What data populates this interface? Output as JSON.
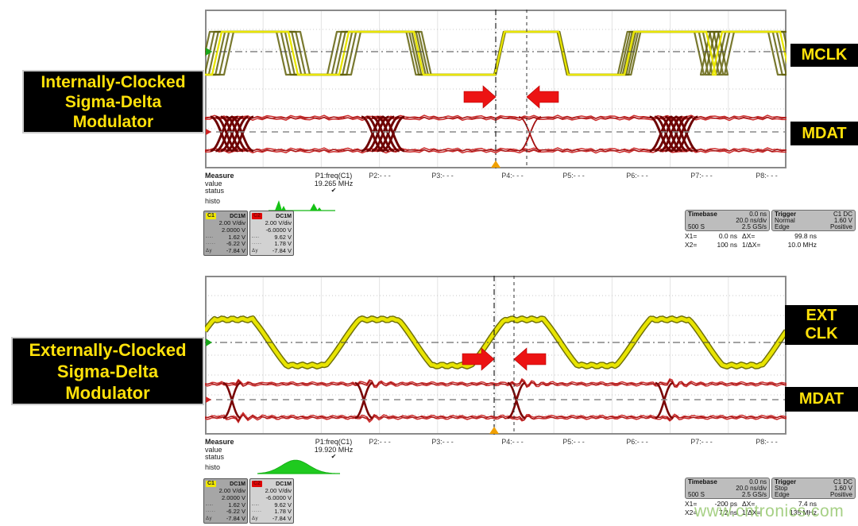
{
  "watermark": "www.cntronics.com",
  "scopes": [
    {
      "caption_lines": [
        "Internally-Clocked",
        "Sigma-Delta",
        "Modulator"
      ],
      "trace_labels": [
        {
          "lines": [
            "MCLK"
          ]
        },
        {
          "lines": [
            "MDAT"
          ]
        }
      ],
      "measure": {
        "title": "Measure",
        "row_labels": [
          "value",
          "status",
          "histo"
        ],
        "p1": {
          "label": "P1:freq(C1)",
          "value": "19.265 MHz",
          "status": "✔"
        },
        "others": [
          "P2:- - -",
          "P3:- - -",
          "P4:- - -",
          "P5:- - -",
          "P6:- - -",
          "P7:- - -",
          "P8:- - -"
        ]
      },
      "channels": [
        {
          "id": "C1",
          "coupling": "DC1M",
          "rows": [
            {
              "g": "",
              "v": "2.00 V/div"
            },
            {
              "g": "",
              "v": "2.0000 V"
            },
            {
              "g": "-·-·",
              "v": "1.62 V"
            },
            {
              "g": "·····",
              "v": "-6.22 V"
            },
            {
              "g": "Δy",
              "v": "-7.84 V"
            }
          ]
        },
        {
          "id": "C2",
          "coupling": "DC1M",
          "rows": [
            {
              "g": "",
              "v": "2.00 V/div"
            },
            {
              "g": "",
              "v": "-6.0000 V"
            },
            {
              "g": "-·-·",
              "v": "9.62 V"
            },
            {
              "g": "·····",
              "v": "1.78 V"
            },
            {
              "g": "Δy",
              "v": "-7.84 V"
            }
          ]
        }
      ],
      "timebase": {
        "title": "Timebase",
        "value": "0.0 ns",
        "line2": "20.0 ns/div",
        "line3_left": "500 S",
        "line3_right": "2.5 GS/s"
      },
      "trigger": {
        "title": "Trigger",
        "value": "C1 DC",
        "line2_left": "Normal",
        "line2_right": "1.60 V",
        "line3_left": "Edge",
        "line3_right": "Positive"
      },
      "cursors": {
        "x1_label": "X1=",
        "x1": "0.0 ns",
        "dx_label": "ΔX=",
        "dx": "99.8 ns",
        "x2_label": "X2=",
        "x2": "100 ns",
        "inv_label": "1/ΔX=",
        "inv": "10.0 MHz"
      }
    },
    {
      "caption_lines": [
        "Externally-Clocked",
        "Sigma-Delta",
        "Modulator"
      ],
      "trace_labels": [
        {
          "lines": [
            "EXT",
            "CLK"
          ]
        },
        {
          "lines": [
            "MDAT"
          ]
        }
      ],
      "measure": {
        "title": "Measure",
        "row_labels": [
          "value",
          "status",
          "histo"
        ],
        "p1": {
          "label": "P1:freq(C1)",
          "value": "19.920 MHz",
          "status": "✔"
        },
        "others": [
          "P2:- - -",
          "P3:- - -",
          "P4:- - -",
          "P5:- - -",
          "P6:- - -",
          "P7:- - -",
          "P8:- - -"
        ]
      },
      "channels": [
        {
          "id": "C1",
          "coupling": "DC1M",
          "rows": [
            {
              "g": "",
              "v": "2.00 V/div"
            },
            {
              "g": "",
              "v": "2.0000 V"
            },
            {
              "g": "-·-·",
              "v": "1.62 V"
            },
            {
              "g": "·····",
              "v": "-6.22 V"
            },
            {
              "g": "Δy",
              "v": "-7.84 V"
            }
          ]
        },
        {
          "id": "C2",
          "coupling": "DC1M",
          "rows": [
            {
              "g": "",
              "v": "2.00 V/div"
            },
            {
              "g": "",
              "v": "-6.0000 V"
            },
            {
              "g": "-·-·",
              "v": "9.62 V"
            },
            {
              "g": "·····",
              "v": "1.78 V"
            },
            {
              "g": "Δy",
              "v": "-7.84 V"
            }
          ]
        }
      ],
      "timebase": {
        "title": "Timebase",
        "value": "0.0 ns",
        "line2": "20.0 ns/div",
        "line3_left": "500 S",
        "line3_right": "2.5 GS/s"
      },
      "trigger": {
        "title": "Trigger",
        "value": "C1 DC",
        "line2_left": "Stop",
        "line2_right": "1.60 V",
        "line3_left": "Edge",
        "line3_right": "Positive"
      },
      "cursors": {
        "x1_label": "X1=",
        "x1": "-200 ps",
        "dx_label": "ΔX=",
        "dx": "7.4 ns",
        "x2_label": "X2=",
        "x2": "7.2 ns",
        "inv_label": "1/ΔX=",
        "inv": "135 MHz"
      }
    }
  ]
}
